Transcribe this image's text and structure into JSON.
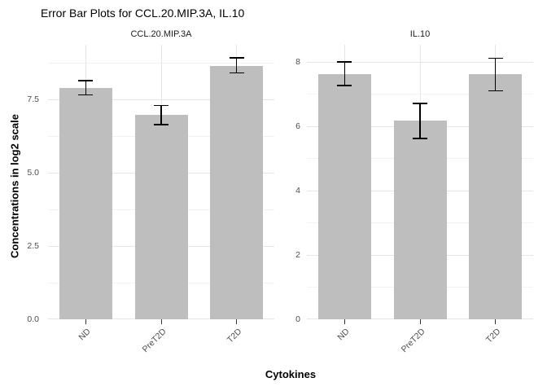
{
  "title": "Error Bar Plots for CCL.20.MIP.3A, IL.10",
  "axes": {
    "y_title": "Concentrations in log2 scale",
    "x_title": "Cytokines"
  },
  "chart_data": [
    {
      "type": "bar",
      "facet": "CCL.20.MIP.3A",
      "categories": [
        "ND",
        "PreT2D",
        "T2D"
      ],
      "values": [
        7.89,
        6.98,
        8.65
      ],
      "error_low": [
        7.65,
        6.64,
        8.4
      ],
      "error_high": [
        8.14,
        7.29,
        8.92
      ],
      "ylim": [
        0,
        9.36
      ],
      "yticks": [
        0,
        2.5,
        5,
        7.5
      ],
      "ytick_labels": [
        "0.0",
        "2.5",
        "5.0",
        "7.5"
      ],
      "yminor": [
        1.25,
        3.75,
        6.25,
        8.75
      ],
      "grid": true,
      "legend": "none"
    },
    {
      "type": "bar",
      "facet": "IL.10",
      "categories": [
        "ND",
        "PreT2D",
        "T2D"
      ],
      "values": [
        7.63,
        6.17,
        7.63
      ],
      "error_low": [
        7.27,
        5.62,
        7.1
      ],
      "error_high": [
        8.0,
        6.71,
        8.11
      ],
      "ylim": [
        0,
        8.53
      ],
      "yticks": [
        0,
        2,
        4,
        6,
        8
      ],
      "ytick_labels": [
        "0",
        "2",
        "4",
        "6",
        "8"
      ],
      "yminor": [
        1,
        3,
        5,
        7
      ],
      "grid": true,
      "legend": "none"
    }
  ],
  "colors": {
    "bar_fill": "#BEBEBE",
    "error_bar": "#000000",
    "grid_major": "#E5E5E5",
    "grid_minor": "#F2F2F2",
    "axis_text": "#4D4D4D",
    "tick_mark": "#333333",
    "strip_text": "#1A1A1A",
    "title_text": "#000000"
  }
}
